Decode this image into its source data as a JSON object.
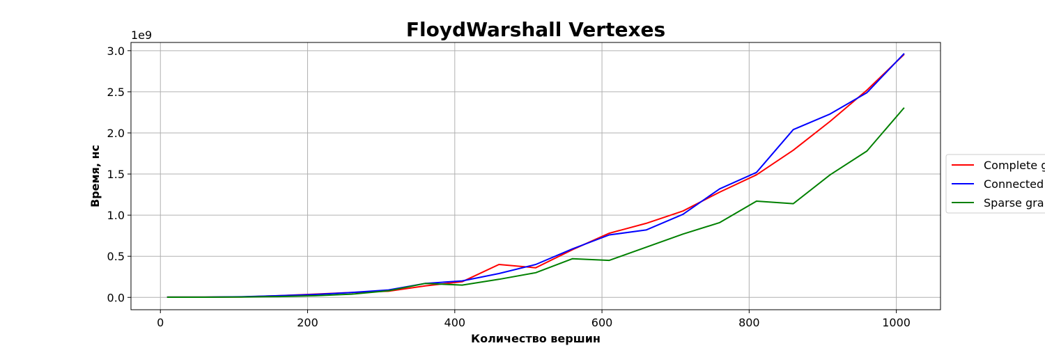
{
  "chart_data": {
    "type": "line",
    "title": "FloydWarshall Vertexes",
    "xlabel": "Количество вершин",
    "ylabel": "Время, нс",
    "y_offset_label": "1e9",
    "xlim": [
      -40,
      1060
    ],
    "ylim": [
      -0.15,
      3.1
    ],
    "x_ticks": [
      0,
      200,
      400,
      600,
      800,
      1000
    ],
    "x_tick_labels": [
      "0",
      "200",
      "400",
      "600",
      "800",
      "1000"
    ],
    "y_ticks": [
      0.0,
      0.5,
      1.0,
      1.5,
      2.0,
      2.5,
      3.0
    ],
    "y_tick_labels": [
      "0.0",
      "0.5",
      "1.0",
      "1.5",
      "2.0",
      "2.5",
      "3.0"
    ],
    "grid": true,
    "legend_position": "center-right, outside plot",
    "x": [
      10,
      60,
      110,
      160,
      210,
      260,
      310,
      360,
      410,
      460,
      510,
      560,
      610,
      660,
      710,
      760,
      810,
      860,
      910,
      960,
      1010
    ],
    "series": [
      {
        "name": "Complete graph",
        "legend_label": "Complete g",
        "color": "#ff0000",
        "values": [
          0.003,
          0.003,
          0.006,
          0.02,
          0.04,
          0.06,
          0.075,
          0.14,
          0.19,
          0.4,
          0.36,
          0.58,
          0.78,
          0.9,
          1.05,
          1.28,
          1.49,
          1.79,
          2.14,
          2.52,
          2.95
        ]
      },
      {
        "name": "Connected graph",
        "legend_label": "Connected",
        "color": "#0000ff",
        "values": [
          0.003,
          0.003,
          0.007,
          0.02,
          0.035,
          0.06,
          0.09,
          0.17,
          0.2,
          0.29,
          0.4,
          0.59,
          0.76,
          0.82,
          1.01,
          1.32,
          1.52,
          2.04,
          2.23,
          2.49,
          2.96
        ]
      },
      {
        "name": "Sparse graph",
        "legend_label": "Sparse gra",
        "color": "#008000",
        "values": [
          0.002,
          0.002,
          0.005,
          0.01,
          0.02,
          0.04,
          0.08,
          0.17,
          0.15,
          0.22,
          0.3,
          0.47,
          0.45,
          0.61,
          0.77,
          0.91,
          1.17,
          1.14,
          1.49,
          1.78,
          2.3
        ]
      }
    ]
  }
}
